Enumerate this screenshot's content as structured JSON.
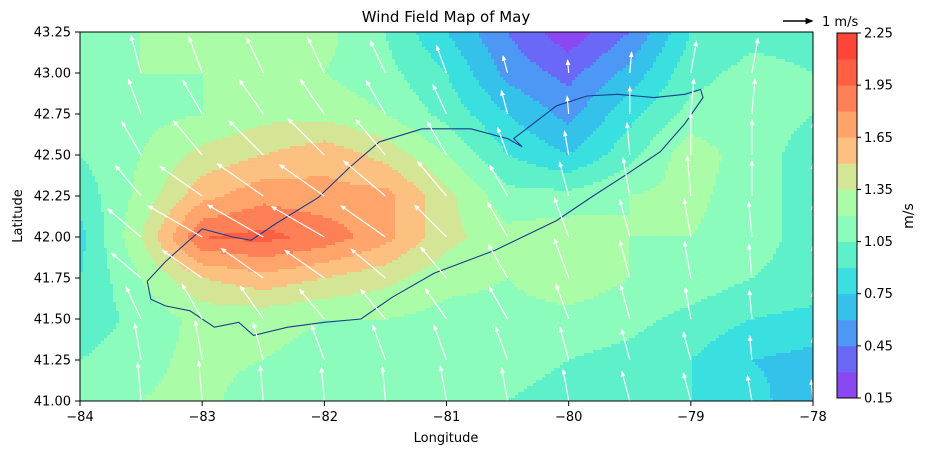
{
  "chart_data": {
    "type": "heatmap",
    "subtype": "filled contour map with wind vector arrows",
    "title": "Wind Field Map of May",
    "xlabel": "Longitude",
    "ylabel": "Latitude",
    "xlim": [
      -84,
      -78
    ],
    "ylim": [
      41.0,
      43.25
    ],
    "x_ticks": [
      -84,
      -83,
      -82,
      -81,
      -80,
      -79,
      -78
    ],
    "x_tick_labels": [
      "−84",
      "−83",
      "−82",
      "−81",
      "−80",
      "−79",
      "−78"
    ],
    "y_ticks": [
      41.0,
      41.25,
      41.5,
      41.75,
      42.0,
      42.25,
      42.5,
      42.75,
      43.0,
      43.25
    ],
    "y_tick_labels": [
      "41.00",
      "41.25",
      "41.50",
      "41.75",
      "42.00",
      "42.25",
      "42.50",
      "42.75",
      "43.00",
      "43.25"
    ],
    "colorbar": {
      "label": "m/s",
      "levels": [
        0.15,
        0.3,
        0.45,
        0.6,
        0.75,
        0.9,
        1.05,
        1.2,
        1.35,
        1.5,
        1.65,
        1.8,
        1.95,
        2.1,
        2.25
      ],
      "tick_values": [
        0.15,
        0.45,
        0.75,
        1.05,
        1.35,
        1.65,
        1.95,
        2.25
      ],
      "tick_labels": [
        "0.15",
        "0.45",
        "0.75",
        "1.05",
        "1.35",
        "1.65",
        "1.95",
        "2.25"
      ],
      "colors": [
        "#8a48f2",
        "#6a68f6",
        "#4c98f4",
        "#34c2ea",
        "#3ae0e0",
        "#5ef0c8",
        "#8cfcbc",
        "#aafca6",
        "#d4e696",
        "#fcc080",
        "#ffa46a",
        "#ff8056",
        "#ff6044",
        "#ff4438"
      ]
    },
    "quiver_key": {
      "label": "1 m/s",
      "magnitude": 1
    },
    "field": {
      "lon": [
        -84,
        -83.5,
        -83,
        -82.5,
        -82,
        -81.5,
        -81,
        -80.5,
        -80,
        -79.5,
        -79,
        -78.5,
        -78
      ],
      "lat": [
        41.0,
        41.25,
        41.5,
        41.75,
        42.0,
        42.25,
        42.5,
        42.75,
        43.0,
        43.25
      ],
      "speed": [
        [
          1.1,
          1.2,
          1.25,
          1.1,
          1.05,
          1.05,
          1.1,
          1.05,
          1.0,
          0.95,
          0.9,
          0.8,
          0.65
        ],
        [
          1.05,
          1.15,
          1.25,
          1.2,
          1.15,
          1.15,
          1.15,
          1.1,
          1.05,
          1.0,
          0.9,
          0.75,
          0.7
        ],
        [
          0.95,
          1.1,
          1.25,
          1.25,
          1.2,
          1.2,
          1.15,
          1.15,
          1.15,
          1.1,
          1.0,
          0.9,
          0.85
        ],
        [
          0.9,
          1.2,
          1.5,
          1.6,
          1.5,
          1.4,
          1.25,
          1.2,
          1.3,
          1.2,
          1.15,
          1.05,
          1.0
        ],
        [
          0.85,
          1.35,
          1.95,
          2.0,
          1.9,
          1.7,
          1.4,
          1.25,
          1.3,
          1.2,
          1.2,
          1.1,
          1.0
        ],
        [
          0.95,
          1.25,
          1.6,
          1.75,
          1.7,
          1.7,
          1.4,
          1.1,
          1.1,
          1.2,
          1.25,
          1.1,
          1.0
        ],
        [
          1.05,
          1.2,
          1.4,
          1.5,
          1.6,
          1.45,
          1.2,
          0.9,
          0.75,
          1.0,
          1.3,
          1.1,
          1.0
        ],
        [
          1.1,
          1.15,
          1.2,
          1.3,
          1.3,
          1.2,
          1.0,
          0.75,
          0.55,
          0.85,
          1.1,
          1.1,
          1.05
        ],
        [
          1.15,
          1.2,
          1.2,
          1.2,
          1.2,
          1.1,
          0.9,
          0.55,
          0.4,
          0.65,
          1.0,
          1.1,
          1.05
        ],
        [
          1.05,
          1.2,
          1.2,
          1.25,
          1.25,
          1.05,
          0.75,
          0.45,
          0.2,
          0.45,
          0.9,
          1.0,
          1.0
        ]
      ],
      "direction_deg_from_north": [
        [
          350,
          355,
          355,
          355,
          355,
          355,
          350,
          350,
          350,
          345,
          345,
          350,
          355
        ],
        [
          345,
          350,
          350,
          345,
          340,
          340,
          340,
          340,
          345,
          345,
          345,
          355,
          0
        ],
        [
          330,
          335,
          330,
          325,
          320,
          320,
          325,
          330,
          340,
          345,
          350,
          355,
          0
        ],
        [
          320,
          310,
          305,
          305,
          305,
          310,
          320,
          330,
          340,
          345,
          350,
          355,
          0
        ],
        [
          330,
          310,
          300,
          300,
          300,
          305,
          315,
          330,
          340,
          345,
          350,
          355,
          0
        ],
        [
          335,
          320,
          305,
          305,
          305,
          310,
          320,
          330,
          345,
          350,
          355,
          0,
          0
        ],
        [
          340,
          330,
          320,
          315,
          315,
          320,
          330,
          340,
          350,
          355,
          0,
          0,
          0
        ],
        [
          345,
          340,
          330,
          325,
          325,
          330,
          335,
          345,
          355,
          0,
          5,
          5,
          5
        ],
        [
          345,
          345,
          340,
          335,
          335,
          335,
          340,
          345,
          355,
          5,
          10,
          10,
          10
        ],
        [
          350,
          350,
          345,
          345,
          340,
          340,
          345,
          350,
          0,
          10,
          15,
          15,
          15
        ]
      ]
    },
    "coastline": [
      [
        -83.45,
        41.73
      ],
      [
        -83.42,
        41.62
      ],
      [
        -83.3,
        41.58
      ],
      [
        -83.1,
        41.55
      ],
      [
        -82.9,
        41.45
      ],
      [
        -82.7,
        41.48
      ],
      [
        -82.58,
        41.4
      ],
      [
        -82.3,
        41.45
      ],
      [
        -82.0,
        41.48
      ],
      [
        -81.7,
        41.5
      ],
      [
        -81.45,
        41.63
      ],
      [
        -81.1,
        41.78
      ],
      [
        -80.6,
        41.92
      ],
      [
        -80.1,
        42.1
      ],
      [
        -79.8,
        42.25
      ],
      [
        -79.55,
        42.37
      ],
      [
        -79.25,
        42.52
      ],
      [
        -79.05,
        42.69
      ],
      [
        -78.9,
        42.85
      ],
      [
        -78.92,
        42.9
      ],
      [
        -79.05,
        42.87
      ],
      [
        -79.3,
        42.85
      ],
      [
        -79.6,
        42.87
      ],
      [
        -79.85,
        42.86
      ],
      [
        -80.1,
        42.8
      ],
      [
        -80.45,
        42.6
      ],
      [
        -80.38,
        42.55
      ],
      [
        -80.5,
        42.6
      ],
      [
        -80.8,
        42.66
      ],
      [
        -81.2,
        42.66
      ],
      [
        -81.55,
        42.58
      ],
      [
        -81.8,
        42.42
      ],
      [
        -82.05,
        42.24
      ],
      [
        -82.4,
        42.08
      ],
      [
        -82.6,
        41.98
      ],
      [
        -82.75,
        42.0
      ],
      [
        -83.0,
        42.05
      ],
      [
        -83.15,
        41.95
      ],
      [
        -83.3,
        41.85
      ],
      [
        -83.45,
        41.73
      ]
    ],
    "grid": false,
    "colormap": "rainbow (alpha 0.7)"
  }
}
